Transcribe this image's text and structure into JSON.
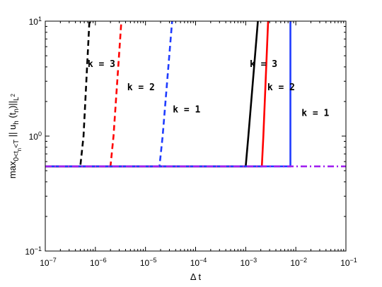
{
  "chart_data": {
    "type": "line",
    "xscale": "log",
    "yscale": "log",
    "xlim": [
      1e-07,
      0.1
    ],
    "ylim": [
      0.1,
      10
    ],
    "grid": false,
    "xlabel": "Δ t",
    "ylabel": {
      "prefix": "max",
      "prefix_sub": "0<t",
      "prefix_subsub": "n",
      "prefix_sub2": "<T",
      "body": " || u",
      "body_sub": "h",
      "body2": " (t",
      "body2_sub": "n",
      "body3": ")||",
      "norm_sub": "L",
      "norm_supsub": "2"
    },
    "xticks": [
      {
        "value": 1e-07,
        "base": "10",
        "exp": "−7"
      },
      {
        "value": 1e-06,
        "base": "10",
        "exp": "−6"
      },
      {
        "value": 1e-05,
        "base": "10",
        "exp": "−5"
      },
      {
        "value": 0.0001,
        "base": "10",
        "exp": "−4"
      },
      {
        "value": 0.001,
        "base": "10",
        "exp": "−3"
      },
      {
        "value": 0.01,
        "base": "10",
        "exp": "−2"
      },
      {
        "value": 0.1,
        "base": "10",
        "exp": "−1"
      }
    ],
    "yticks": [
      {
        "value": 0.1,
        "base": "10",
        "exp": "−1"
      },
      {
        "value": 1,
        "base": "10",
        "exp": "0"
      },
      {
        "value": 10,
        "base": "10",
        "exp": "1"
      }
    ],
    "series": [
      {
        "style": "dashed",
        "color": "#000000",
        "x": [
          1e-07,
          5e-07,
          5.8e-07,
          7.6e-07
        ],
        "y": [
          0.545,
          0.545,
          1.0,
          10
        ]
      },
      {
        "style": "dashed",
        "color": "#ff0000",
        "x": [
          1e-07,
          2e-06,
          2.3e-06,
          3.3e-06
        ],
        "y": [
          0.545,
          0.545,
          1.0,
          10
        ]
      },
      {
        "style": "dashed",
        "color": "#1f3cff",
        "x": [
          1e-07,
          1.9e-05,
          2.2e-05,
          3.4e-05
        ],
        "y": [
          0.545,
          0.545,
          1.0,
          10
        ]
      },
      {
        "style": "solid",
        "color": "#000000",
        "x": [
          1e-07,
          0.001,
          0.00113,
          0.00175
        ],
        "y": [
          0.545,
          0.545,
          1.0,
          10
        ]
      },
      {
        "style": "solid",
        "color": "#ff0000",
        "x": [
          1e-07,
          0.0021,
          0.00225,
          0.0028
        ],
        "y": [
          0.545,
          0.545,
          1.0,
          10
        ]
      },
      {
        "style": "solid",
        "color": "#1f3cff",
        "x": [
          1e-07,
          0.0078,
          0.0078
        ],
        "y": [
          0.545,
          0.545,
          10
        ]
      },
      {
        "style": "dashdot",
        "color": "#a020f0",
        "x": [
          1e-07,
          0.1
        ],
        "y": [
          0.545,
          0.545
        ]
      }
    ],
    "annotations": [
      {
        "text": "k = 3",
        "x": 7e-07,
        "y": 4.0
      },
      {
        "text": "k = 2",
        "x": 4.3e-06,
        "y": 2.5
      },
      {
        "text": "k = 1",
        "x": 3.5e-05,
        "y": 1.6
      },
      {
        "text": "k = 3",
        "x": 0.0012,
        "y": 4.0
      },
      {
        "text": "k = 2",
        "x": 0.0027,
        "y": 2.5
      },
      {
        "text": "k = 1",
        "x": 0.013,
        "y": 1.5
      }
    ]
  }
}
